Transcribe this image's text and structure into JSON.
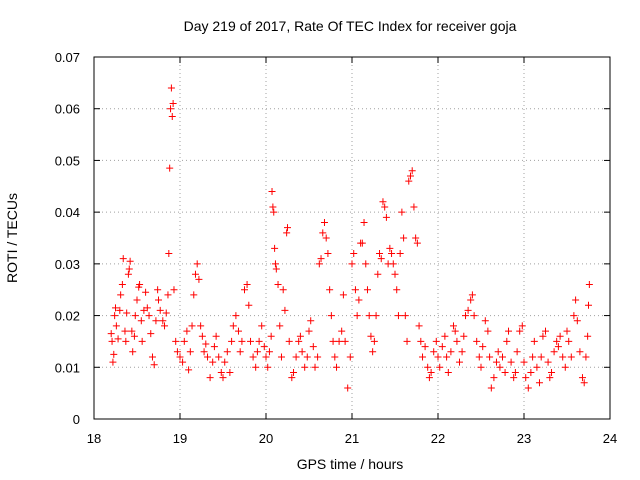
{
  "chart_data": {
    "type": "scatter",
    "title": "Day 219 of 2017, Rate Of TEC Index for receiver goja",
    "xlabel": "GPS time / hours",
    "ylabel": "ROTI / TECUs",
    "xlim": [
      18,
      24
    ],
    "ylim": [
      0,
      0.07
    ],
    "x_ticks": [
      "18",
      "19",
      "20",
      "21",
      "22",
      "23",
      "24"
    ],
    "y_ticks": [
      "0",
      "0.01",
      "0.02",
      "0.03",
      "0.04",
      "0.05",
      "0.06",
      "0.07"
    ],
    "grid": true,
    "legend": "none",
    "marker": "plus",
    "point_color": "#ff0000",
    "series": [
      {
        "name": "ROTI",
        "points": [
          [
            18.2,
            0.0165
          ],
          [
            18.21,
            0.015
          ],
          [
            18.22,
            0.011
          ],
          [
            18.23,
            0.0125
          ],
          [
            18.24,
            0.02
          ],
          [
            18.25,
            0.0215
          ],
          [
            18.26,
            0.018
          ],
          [
            18.28,
            0.0155
          ],
          [
            18.3,
            0.021
          ],
          [
            18.31,
            0.024
          ],
          [
            18.33,
            0.026
          ],
          [
            18.34,
            0.031
          ],
          [
            18.36,
            0.017
          ],
          [
            18.37,
            0.015
          ],
          [
            18.38,
            0.0205
          ],
          [
            18.4,
            0.028
          ],
          [
            18.41,
            0.029
          ],
          [
            18.42,
            0.0305
          ],
          [
            18.44,
            0.017
          ],
          [
            18.45,
            0.013
          ],
          [
            18.47,
            0.016
          ],
          [
            18.48,
            0.02
          ],
          [
            18.5,
            0.023
          ],
          [
            18.52,
            0.0255
          ],
          [
            18.53,
            0.026
          ],
          [
            18.55,
            0.019
          ],
          [
            18.56,
            0.015
          ],
          [
            18.58,
            0.021
          ],
          [
            18.6,
            0.0245
          ],
          [
            18.62,
            0.0215
          ],
          [
            18.64,
            0.02
          ],
          [
            18.66,
            0.0165
          ],
          [
            18.68,
            0.012
          ],
          [
            18.7,
            0.0105
          ],
          [
            18.72,
            0.019
          ],
          [
            18.74,
            0.025
          ],
          [
            18.75,
            0.023
          ],
          [
            18.77,
            0.021
          ],
          [
            18.8,
            0.019
          ],
          [
            18.82,
            0.018
          ],
          [
            18.84,
            0.0205
          ],
          [
            18.86,
            0.024
          ],
          [
            18.87,
            0.032
          ],
          [
            18.88,
            0.0485
          ],
          [
            18.89,
            0.06
          ],
          [
            18.9,
            0.064
          ],
          [
            18.91,
            0.0585
          ],
          [
            18.92,
            0.061
          ],
          [
            18.93,
            0.025
          ],
          [
            18.95,
            0.015
          ],
          [
            18.97,
            0.013
          ],
          [
            19.0,
            0.012
          ],
          [
            19.03,
            0.011
          ],
          [
            19.05,
            0.015
          ],
          [
            19.08,
            0.017
          ],
          [
            19.1,
            0.0095
          ],
          [
            19.12,
            0.013
          ],
          [
            19.14,
            0.018
          ],
          [
            19.16,
            0.024
          ],
          [
            19.18,
            0.028
          ],
          [
            19.2,
            0.03
          ],
          [
            19.22,
            0.027
          ],
          [
            19.24,
            0.018
          ],
          [
            19.26,
            0.016
          ],
          [
            19.28,
            0.013
          ],
          [
            19.3,
            0.0145
          ],
          [
            19.32,
            0.012
          ],
          [
            19.35,
            0.008
          ],
          [
            19.38,
            0.011
          ],
          [
            19.4,
            0.014
          ],
          [
            19.42,
            0.016
          ],
          [
            19.45,
            0.012
          ],
          [
            19.48,
            0.009
          ],
          [
            19.5,
            0.008
          ],
          [
            19.52,
            0.011
          ],
          [
            19.55,
            0.013
          ],
          [
            19.58,
            0.009
          ],
          [
            19.6,
            0.015
          ],
          [
            19.62,
            0.018
          ],
          [
            19.65,
            0.02
          ],
          [
            19.68,
            0.017
          ],
          [
            19.7,
            0.013
          ],
          [
            19.72,
            0.015
          ],
          [
            19.75,
            0.025
          ],
          [
            19.78,
            0.026
          ],
          [
            19.8,
            0.022
          ],
          [
            19.82,
            0.015
          ],
          [
            19.85,
            0.012
          ],
          [
            19.88,
            0.01
          ],
          [
            19.9,
            0.013
          ],
          [
            19.92,
            0.015
          ],
          [
            19.95,
            0.018
          ],
          [
            19.98,
            0.014
          ],
          [
            20.0,
            0.012
          ],
          [
            20.02,
            0.01
          ],
          [
            20.04,
            0.013
          ],
          [
            20.06,
            0.016
          ],
          [
            20.07,
            0.044
          ],
          [
            20.08,
            0.041
          ],
          [
            20.09,
            0.04
          ],
          [
            20.1,
            0.033
          ],
          [
            20.11,
            0.03
          ],
          [
            20.12,
            0.029
          ],
          [
            20.14,
            0.026
          ],
          [
            20.16,
            0.018
          ],
          [
            20.18,
            0.012
          ],
          [
            20.2,
            0.025
          ],
          [
            20.22,
            0.021
          ],
          [
            20.24,
            0.036
          ],
          [
            20.25,
            0.037
          ],
          [
            20.27,
            0.015
          ],
          [
            20.3,
            0.008
          ],
          [
            20.32,
            0.009
          ],
          [
            20.35,
            0.012
          ],
          [
            20.38,
            0.015
          ],
          [
            20.4,
            0.016
          ],
          [
            20.42,
            0.013
          ],
          [
            20.45,
            0.01
          ],
          [
            20.48,
            0.012
          ],
          [
            20.5,
            0.017
          ],
          [
            20.52,
            0.019
          ],
          [
            20.55,
            0.014
          ],
          [
            20.57,
            0.01
          ],
          [
            20.6,
            0.012
          ],
          [
            20.62,
            0.03
          ],
          [
            20.64,
            0.031
          ],
          [
            20.66,
            0.036
          ],
          [
            20.68,
            0.038
          ],
          [
            20.7,
            0.035
          ],
          [
            20.72,
            0.032
          ],
          [
            20.74,
            0.025
          ],
          [
            20.76,
            0.02
          ],
          [
            20.78,
            0.015
          ],
          [
            20.8,
            0.012
          ],
          [
            20.82,
            0.01
          ],
          [
            20.85,
            0.015
          ],
          [
            20.88,
            0.017
          ],
          [
            20.9,
            0.024
          ],
          [
            20.92,
            0.015
          ],
          [
            20.95,
            0.006
          ],
          [
            20.98,
            0.012
          ],
          [
            21.0,
            0.03
          ],
          [
            21.02,
            0.032
          ],
          [
            21.04,
            0.025
          ],
          [
            21.06,
            0.02
          ],
          [
            21.08,
            0.023
          ],
          [
            21.1,
            0.034
          ],
          [
            21.12,
            0.034
          ],
          [
            21.14,
            0.038
          ],
          [
            21.16,
            0.03
          ],
          [
            21.18,
            0.025
          ],
          [
            21.2,
            0.02
          ],
          [
            21.22,
            0.016
          ],
          [
            21.24,
            0.013
          ],
          [
            21.26,
            0.015
          ],
          [
            21.28,
            0.02
          ],
          [
            21.3,
            0.028
          ],
          [
            21.32,
            0.032
          ],
          [
            21.34,
            0.031
          ],
          [
            21.36,
            0.042
          ],
          [
            21.38,
            0.041
          ],
          [
            21.4,
            0.039
          ],
          [
            21.42,
            0.03
          ],
          [
            21.44,
            0.033
          ],
          [
            21.46,
            0.032
          ],
          [
            21.48,
            0.03
          ],
          [
            21.5,
            0.028
          ],
          [
            21.52,
            0.025
          ],
          [
            21.54,
            0.02
          ],
          [
            21.56,
            0.032
          ],
          [
            21.58,
            0.04
          ],
          [
            21.6,
            0.035
          ],
          [
            21.62,
            0.02
          ],
          [
            21.64,
            0.015
          ],
          [
            21.66,
            0.046
          ],
          [
            21.68,
            0.047
          ],
          [
            21.7,
            0.048
          ],
          [
            21.72,
            0.041
          ],
          [
            21.74,
            0.035
          ],
          [
            21.76,
            0.034
          ],
          [
            21.78,
            0.018
          ],
          [
            21.8,
            0.015
          ],
          [
            21.82,
            0.012
          ],
          [
            21.85,
            0.014
          ],
          [
            21.88,
            0.01
          ],
          [
            21.9,
            0.008
          ],
          [
            21.92,
            0.009
          ],
          [
            21.95,
            0.013
          ],
          [
            21.98,
            0.015
          ],
          [
            22.0,
            0.012
          ],
          [
            22.02,
            0.01
          ],
          [
            22.05,
            0.014
          ],
          [
            22.08,
            0.016
          ],
          [
            22.1,
            0.012
          ],
          [
            22.12,
            0.009
          ],
          [
            22.15,
            0.013
          ],
          [
            22.18,
            0.018
          ],
          [
            22.2,
            0.017
          ],
          [
            22.22,
            0.015
          ],
          [
            22.25,
            0.011
          ],
          [
            22.28,
            0.013
          ],
          [
            22.3,
            0.016
          ],
          [
            22.32,
            0.02
          ],
          [
            22.35,
            0.021
          ],
          [
            22.38,
            0.023
          ],
          [
            22.4,
            0.024
          ],
          [
            22.42,
            0.02
          ],
          [
            22.45,
            0.015
          ],
          [
            22.48,
            0.012
          ],
          [
            22.5,
            0.01
          ],
          [
            22.52,
            0.014
          ],
          [
            22.55,
            0.019
          ],
          [
            22.58,
            0.017
          ],
          [
            22.6,
            0.012
          ],
          [
            22.62,
            0.006
          ],
          [
            22.65,
            0.008
          ],
          [
            22.68,
            0.011
          ],
          [
            22.7,
            0.013
          ],
          [
            22.72,
            0.01
          ],
          [
            22.75,
            0.012
          ],
          [
            22.78,
            0.009
          ],
          [
            22.8,
            0.015
          ],
          [
            22.82,
            0.017
          ],
          [
            22.85,
            0.011
          ],
          [
            22.88,
            0.008
          ],
          [
            22.9,
            0.009
          ],
          [
            22.92,
            0.013
          ],
          [
            22.95,
            0.017
          ],
          [
            22.98,
            0.018
          ],
          [
            23.0,
            0.011
          ],
          [
            23.02,
            0.008
          ],
          [
            23.05,
            0.006
          ],
          [
            23.08,
            0.009
          ],
          [
            23.1,
            0.012
          ],
          [
            23.12,
            0.015
          ],
          [
            23.15,
            0.01
          ],
          [
            23.18,
            0.007
          ],
          [
            23.2,
            0.012
          ],
          [
            23.22,
            0.016
          ],
          [
            23.25,
            0.017
          ],
          [
            23.28,
            0.011
          ],
          [
            23.3,
            0.008
          ],
          [
            23.32,
            0.009
          ],
          [
            23.35,
            0.013
          ],
          [
            23.38,
            0.015
          ],
          [
            23.4,
            0.014
          ],
          [
            23.42,
            0.016
          ],
          [
            23.45,
            0.012
          ],
          [
            23.48,
            0.01
          ],
          [
            23.5,
            0.017
          ],
          [
            23.52,
            0.015
          ],
          [
            23.55,
            0.012
          ],
          [
            23.58,
            0.02
          ],
          [
            23.6,
            0.023
          ],
          [
            23.62,
            0.019
          ],
          [
            23.65,
            0.013
          ],
          [
            23.68,
            0.008
          ],
          [
            23.7,
            0.007
          ],
          [
            23.72,
            0.012
          ],
          [
            23.74,
            0.016
          ],
          [
            23.75,
            0.022
          ],
          [
            23.76,
            0.026
          ]
        ]
      }
    ]
  }
}
